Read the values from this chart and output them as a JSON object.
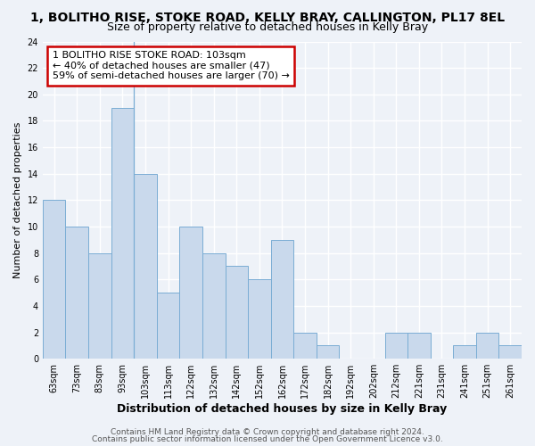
{
  "title": "1, BOLITHO RISE, STOKE ROAD, KELLY BRAY, CALLINGTON, PL17 8EL",
  "subtitle": "Size of property relative to detached houses in Kelly Bray",
  "xlabel": "Distribution of detached houses by size in Kelly Bray",
  "ylabel": "Number of detached properties",
  "bin_labels": [
    "63sqm",
    "73sqm",
    "83sqm",
    "93sqm",
    "103sqm",
    "113sqm",
    "122sqm",
    "132sqm",
    "142sqm",
    "152sqm",
    "162sqm",
    "172sqm",
    "182sqm",
    "192sqm",
    "202sqm",
    "212sqm",
    "221sqm",
    "231sqm",
    "241sqm",
    "251sqm",
    "261sqm"
  ],
  "bar_heights": [
    12,
    10,
    8,
    19,
    14,
    5,
    10,
    8,
    7,
    6,
    9,
    2,
    1,
    0,
    0,
    2,
    2,
    0,
    1,
    2,
    1
  ],
  "bar_color": "#c9d9ec",
  "bar_edge_color": "#7aadd4",
  "highlight_bar_index": 4,
  "annotation_text": "1 BOLITHO RISE STOKE ROAD: 103sqm\n← 40% of detached houses are smaller (47)\n59% of semi-detached houses are larger (70) →",
  "annotation_box_color": "white",
  "annotation_box_edge_color": "#cc0000",
  "ylim": [
    0,
    24
  ],
  "yticks": [
    0,
    2,
    4,
    6,
    8,
    10,
    12,
    14,
    16,
    18,
    20,
    22,
    24
  ],
  "footer_line1": "Contains HM Land Registry data © Crown copyright and database right 2024.",
  "footer_line2": "Contains public sector information licensed under the Open Government Licence v3.0.",
  "background_color": "#eef2f8",
  "grid_color": "white",
  "title_fontsize": 10,
  "subtitle_fontsize": 9,
  "xlabel_fontsize": 9,
  "ylabel_fontsize": 8,
  "tick_fontsize": 7,
  "annotation_fontsize": 8,
  "footer_fontsize": 6.5
}
